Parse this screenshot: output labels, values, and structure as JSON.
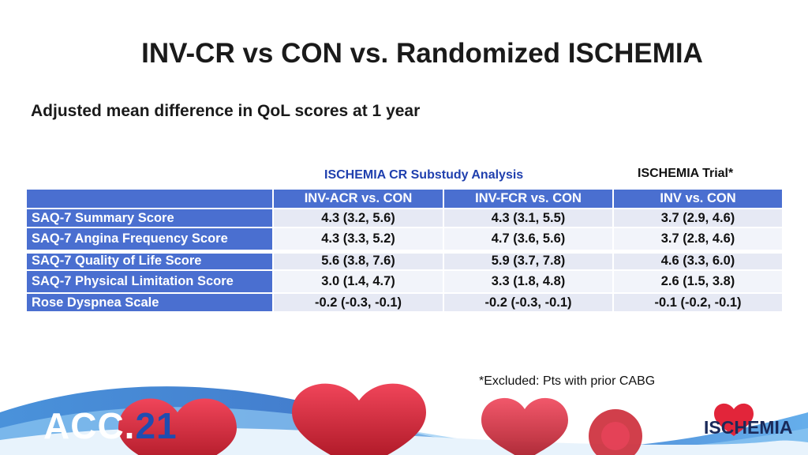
{
  "title": "INV-CR vs CON vs. Randomized ISCHEMIA",
  "subtitle": "Adjusted mean difference in QoL scores at 1 year",
  "group_labels": {
    "substudy": "ISCHEMIA CR Substudy Analysis",
    "trial": "ISCHEMIA Trial*"
  },
  "table": {
    "headers": [
      "",
      "INV-ACR vs. CON",
      "INV-FCR vs. CON",
      "INV vs. CON"
    ],
    "rows": [
      {
        "label": "SAQ-7 Summary Score",
        "values": [
          "4.3 (3.2, 5.6)",
          "4.3 (3.1, 5.5)",
          "3.7 (2.9, 4.6)"
        ]
      },
      {
        "label": "SAQ-7 Angina Frequency Score",
        "values": [
          "4.3 (3.3, 5.2)",
          "4.7 (3.6, 5.6)",
          "3.7 (2.8, 4.6)"
        ]
      },
      {
        "label": "SAQ-7 Quality of Life Score",
        "values": [
          "5.6 (3.8, 7.6)",
          "5.9 (3.7, 7.8)",
          "4.6 (3.3, 6.0)"
        ]
      },
      {
        "label": "SAQ-7 Physical Limitation Score",
        "values": [
          "3.0 (1.4, 4.7)",
          "3.3 (1.8, 4.8)",
          "2.6 (1.5, 3.8)"
        ]
      },
      {
        "label": "Rose Dyspnea Scale",
        "values": [
          "-0.2 (-0.3, -0.1)",
          "-0.2 (-0.3, -0.1)",
          "-0.1 (-0.2, -0.1)"
        ]
      }
    ]
  },
  "footnote": "*Excluded: Pts with prior CABG",
  "logos": {
    "acc_text": "ACC.",
    "acc_num": "21",
    "ischemia": "ISCHEMIA"
  },
  "colors": {
    "header_blue": "#4a6fd0",
    "substudy_blue": "#1f3fae",
    "heart_red": "#d6283a"
  }
}
